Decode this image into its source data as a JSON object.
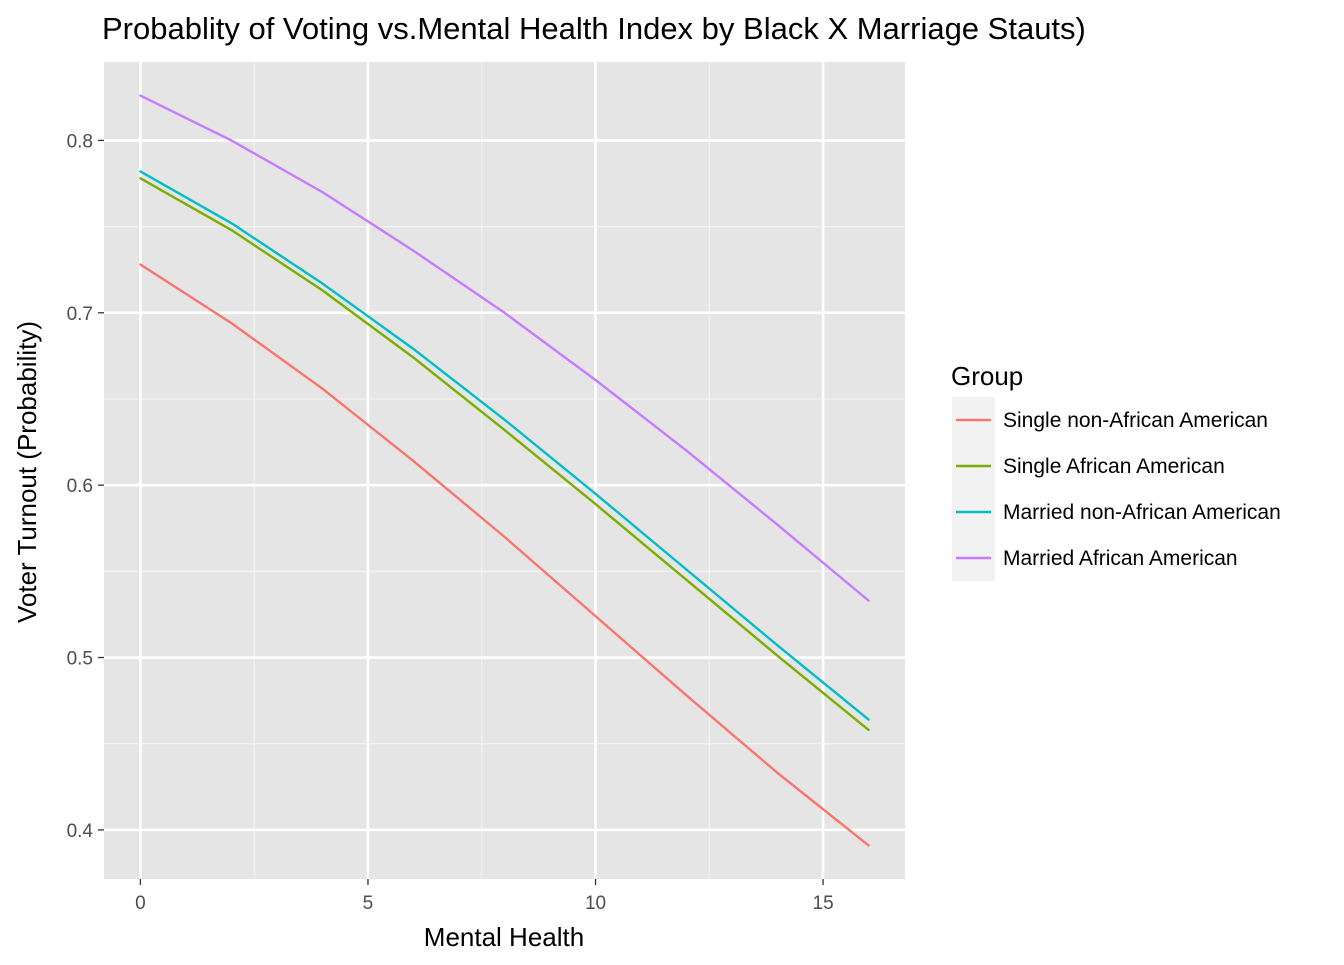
{
  "chart_data": {
    "type": "line",
    "title": "Probablity of Voting vs.Mental Health Index by Black X Marriage Stauts)",
    "xlabel": "Mental Health",
    "ylabel": "Voter Turnout (Probability)",
    "xlim": [
      -0.8,
      16.8
    ],
    "ylim": [
      0.3715,
      0.8455
    ],
    "x_ticks": [
      0,
      5,
      10,
      15
    ],
    "x_tick_labels": [
      "0",
      "5",
      "10",
      "15"
    ],
    "y_ticks": [
      0.4,
      0.5,
      0.6,
      0.7,
      0.8
    ],
    "y_tick_labels": [
      "0.4",
      "0.5",
      "0.6",
      "0.7",
      "0.8"
    ],
    "x_minor_ticks": [
      2.5,
      7.5,
      12.5
    ],
    "y_minor_ticks": [
      0.45,
      0.55,
      0.65,
      0.75
    ],
    "grid": true,
    "background": "#e5e5e5",
    "legend": {
      "title": "Group",
      "placement": "right",
      "entries": [
        "Single non-African American",
        "Single African American",
        "Married non-African American",
        "Married African American"
      ]
    },
    "x": [
      0,
      2,
      4,
      6,
      8,
      10,
      12,
      14,
      16
    ],
    "series": [
      {
        "name": "Single non-African American",
        "color": "#F8766D",
        "values": [
          0.728,
          0.694,
          0.656,
          0.614,
          0.57,
          0.524,
          0.478,
          0.433,
          0.391
        ]
      },
      {
        "name": "Single African American",
        "color": "#7CAE00",
        "values": [
          0.778,
          0.748,
          0.713,
          0.674,
          0.632,
          0.589,
          0.545,
          0.501,
          0.458
        ]
      },
      {
        "name": "Married non-African American",
        "color": "#00BFC4",
        "values": [
          0.782,
          0.752,
          0.717,
          0.679,
          0.638,
          0.595,
          0.551,
          0.507,
          0.464
        ]
      },
      {
        "name": "Married African American",
        "color": "#C77CFF",
        "values": [
          0.826,
          0.8,
          0.77,
          0.736,
          0.7,
          0.661,
          0.62,
          0.577,
          0.533
        ]
      }
    ]
  }
}
